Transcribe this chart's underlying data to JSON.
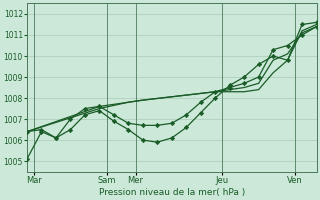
{
  "background_color": "#cce8d8",
  "plot_bg_color": "#cce8d8",
  "grid_color": "#aacbb8",
  "line_color": "#1a5c28",
  "marker_color": "#1a5c28",
  "xlabel": "Pression niveau de la mer( hPa )",
  "ylim": [
    1004.5,
    1012.5
  ],
  "yticks": [
    1005,
    1006,
    1007,
    1008,
    1009,
    1010,
    1011,
    1012
  ],
  "xlim": [
    0,
    20
  ],
  "xtick_positions": [
    0.5,
    5.5,
    7.5,
    13.5,
    18.5
  ],
  "xtick_labels": [
    "Mar",
    "Sam",
    "Mer",
    "Jeu",
    "Ven"
  ],
  "vline_positions": [
    0.5,
    5.5,
    7.5,
    13.5,
    18.5
  ],
  "line1_x": [
    0,
    1,
    2,
    3,
    4,
    5,
    6,
    7,
    8,
    9,
    10,
    11,
    12,
    13,
    14,
    15,
    16,
    17,
    18,
    19,
    20
  ],
  "line1_y": [
    1005.1,
    1006.4,
    1006.1,
    1006.5,
    1007.2,
    1007.4,
    1006.9,
    1006.5,
    1006.0,
    1005.9,
    1006.1,
    1006.6,
    1007.3,
    1008.0,
    1008.6,
    1009.0,
    1009.6,
    1010.0,
    1009.8,
    1011.5,
    1011.6
  ],
  "line2_x": [
    0,
    1,
    2,
    3,
    4,
    5,
    6,
    7,
    8,
    9,
    10,
    11,
    12,
    13,
    14,
    15,
    16,
    17,
    18,
    19,
    20
  ],
  "line2_y": [
    1006.4,
    1006.5,
    1006.1,
    1007.0,
    1007.5,
    1007.6,
    1007.2,
    1006.8,
    1006.7,
    1006.7,
    1006.8,
    1007.2,
    1007.8,
    1008.3,
    1008.5,
    1008.7,
    1009.0,
    1010.3,
    1010.5,
    1011.0,
    1011.4
  ],
  "line3_x": [
    0,
    5,
    7,
    8,
    13,
    14,
    15,
    16,
    17,
    18,
    19,
    20
  ],
  "line3_y": [
    1006.4,
    1007.5,
    1007.8,
    1007.9,
    1008.3,
    1008.4,
    1008.5,
    1008.7,
    1009.8,
    1010.1,
    1011.1,
    1011.4
  ],
  "line4_x": [
    0,
    5,
    7,
    8,
    13,
    14,
    15,
    16,
    17,
    18,
    19,
    20
  ],
  "line4_y": [
    1006.4,
    1007.6,
    1007.8,
    1007.9,
    1008.3,
    1008.3,
    1008.3,
    1008.4,
    1009.2,
    1009.8,
    1011.2,
    1011.5
  ]
}
